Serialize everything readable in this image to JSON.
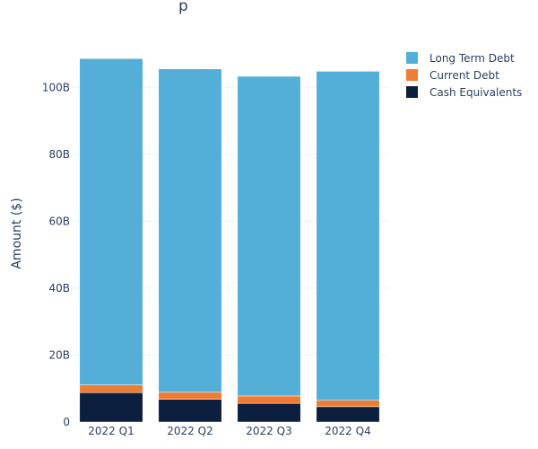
{
  "chart_data": {
    "type": "bar",
    "stacked": true,
    "title_fragment": "p",
    "ylabel": "Amount ($)",
    "ylim": [
      0,
      110000000000
    ],
    "yticks": [
      0,
      20000000000,
      40000000000,
      60000000000,
      80000000000,
      100000000000
    ],
    "ytick_labels": [
      "0",
      "20B",
      "40B",
      "60B",
      "80B",
      "100B"
    ],
    "grid": true,
    "legend_position": "top-right",
    "categories": [
      "2022 Q1",
      "2022 Q2",
      "2022 Q3",
      "2022 Q4"
    ],
    "series": [
      {
        "name": "Cash Equivalents",
        "color": "#0d1f3f",
        "values": [
          8800000000,
          6800000000,
          5600000000,
          4600000000
        ]
      },
      {
        "name": "Current Debt",
        "color": "#f07c32",
        "values": [
          2300000000,
          2100000000,
          2200000000,
          1900000000
        ]
      },
      {
        "name": "Long Term Debt",
        "color": "#53afd8",
        "values": [
          97500000000,
          96600000000,
          95500000000,
          98300000000
        ]
      }
    ],
    "legend_order": [
      "Long Term Debt",
      "Current Debt",
      "Cash Equivalents"
    ]
  }
}
